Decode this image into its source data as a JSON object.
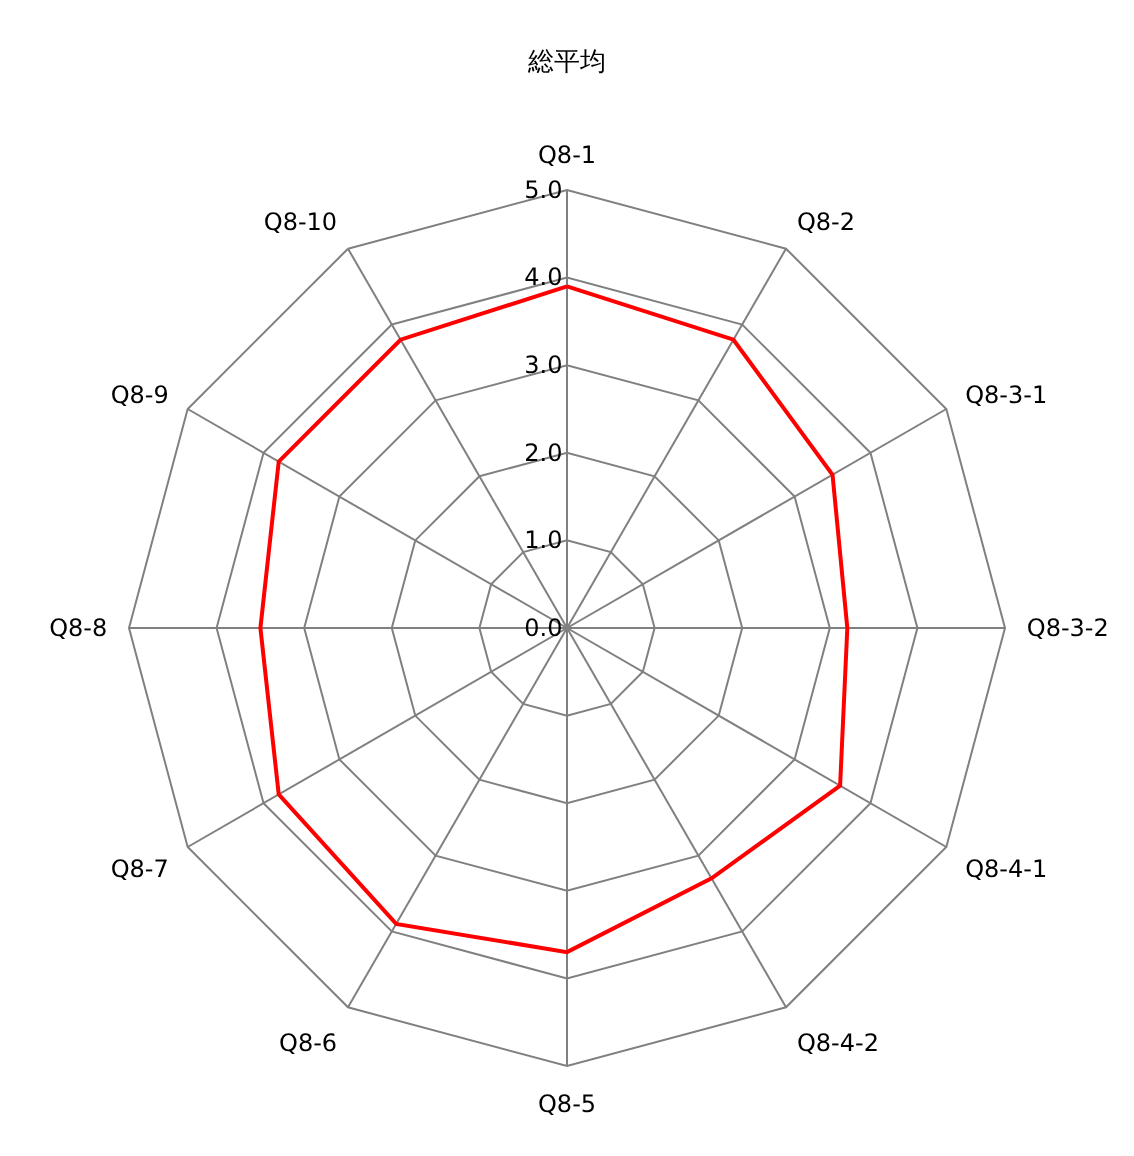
{
  "chart_data": {
    "type": "radar",
    "title": "総平均",
    "categories": [
      "Q8-1",
      "Q8-2",
      "Q8-3-1",
      "Q8-3-2",
      "Q8-4-1",
      "Q8-4-2",
      "Q8-5",
      "Q8-6",
      "Q8-7",
      "Q8-8",
      "Q8-9",
      "Q8-10"
    ],
    "series": [
      {
        "color": "#ff0000",
        "values": [
          3.9,
          3.8,
          3.5,
          3.2,
          3.6,
          3.3,
          3.7,
          3.9,
          3.8,
          3.5,
          3.8,
          3.8
        ]
      }
    ],
    "ylim": [
      0,
      5
    ],
    "yticks": [
      {
        "value": 0,
        "label": "0.0"
      },
      {
        "value": 1,
        "label": "1.0"
      },
      {
        "value": 2,
        "label": "2.0"
      },
      {
        "value": 3,
        "label": "3.0"
      },
      {
        "value": 4,
        "label": "4.0"
      },
      {
        "value": 5,
        "label": "5.0"
      }
    ],
    "grid": true,
    "marker": "none",
    "line_style": "solid"
  }
}
